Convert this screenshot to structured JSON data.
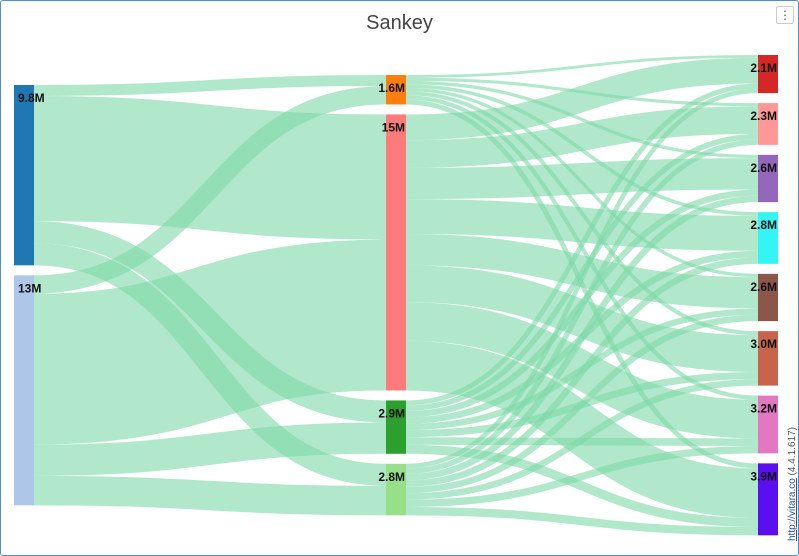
{
  "title": "Sankey",
  "menu_icon": "vertical-ellipsis-icon",
  "credit": {
    "link": "http://vitara.co",
    "version": "(4.4.1.617)"
  },
  "chart_data": {
    "type": "sankey",
    "title": "Sankey",
    "link_color": "#7dd8a8",
    "columns": [
      [
        {
          "id": "L1",
          "label": "9.8M",
          "color": "#1f77b4"
        },
        {
          "id": "L2",
          "label": "13M",
          "color": "#aec7e8"
        }
      ],
      [
        {
          "id": "M1",
          "label": "1.6M",
          "color": "#ff7f0e"
        },
        {
          "id": "M2",
          "label": "15M",
          "color": "#ff7b7b"
        },
        {
          "id": "M3",
          "label": "2.9M",
          "color": "#2ca02c"
        },
        {
          "id": "M4",
          "label": "2.8M",
          "color": "#98df8a"
        }
      ],
      [
        {
          "id": "R1",
          "label": "2.1M",
          "color": "#d62728"
        },
        {
          "id": "R2",
          "label": "2.3M",
          "color": "#ff9896"
        },
        {
          "id": "R3",
          "label": "2.6M",
          "color": "#9467bd"
        },
        {
          "id": "R4",
          "label": "2.8M",
          "color": "#33f5f5"
        },
        {
          "id": "R5",
          "label": "2.6M",
          "color": "#8c564b"
        },
        {
          "id": "R6",
          "label": "3.0M",
          "color": "#c8644c"
        },
        {
          "id": "R7",
          "label": "3.2M",
          "color": "#e377c2"
        },
        {
          "id": "R8",
          "label": "3.9M",
          "color": "#5b0ff0"
        }
      ]
    ],
    "links": [
      [
        "L1",
        "M1",
        0.6
      ],
      [
        "L1",
        "M2",
        6.8
      ],
      [
        "L1",
        "M3",
        1.2
      ],
      [
        "L1",
        "M4",
        1.2
      ],
      [
        "L2",
        "M1",
        1.0
      ],
      [
        "L2",
        "M2",
        8.2
      ],
      [
        "L2",
        "M3",
        1.7
      ],
      [
        "L2",
        "M4",
        1.6
      ],
      [
        "M1",
        "R1",
        0.15
      ],
      [
        "M1",
        "R2",
        0.17
      ],
      [
        "M1",
        "R3",
        0.18
      ],
      [
        "M1",
        "R4",
        0.2
      ],
      [
        "M1",
        "R5",
        0.18
      ],
      [
        "M1",
        "R6",
        0.22
      ],
      [
        "M1",
        "R7",
        0.23
      ],
      [
        "M1",
        "R8",
        0.27
      ],
      [
        "M2",
        "R1",
        1.4
      ],
      [
        "M2",
        "R2",
        1.5
      ],
      [
        "M2",
        "R3",
        1.7
      ],
      [
        "M2",
        "R4",
        1.9
      ],
      [
        "M2",
        "R5",
        1.7
      ],
      [
        "M2",
        "R6",
        2.0
      ],
      [
        "M2",
        "R7",
        2.1
      ],
      [
        "M2",
        "R8",
        2.7
      ],
      [
        "M3",
        "R1",
        0.27
      ],
      [
        "M3",
        "R2",
        0.3
      ],
      [
        "M3",
        "R3",
        0.34
      ],
      [
        "M3",
        "R4",
        0.36
      ],
      [
        "M3",
        "R5",
        0.34
      ],
      [
        "M3",
        "R6",
        0.39
      ],
      [
        "M3",
        "R7",
        0.41
      ],
      [
        "M3",
        "R8",
        0.49
      ],
      [
        "M4",
        "R1",
        0.25
      ],
      [
        "M4",
        "R2",
        0.3
      ],
      [
        "M4",
        "R3",
        0.35
      ],
      [
        "M4",
        "R4",
        0.35
      ],
      [
        "M4",
        "R5",
        0.35
      ],
      [
        "M4",
        "R6",
        0.35
      ],
      [
        "M4",
        "R7",
        0.4
      ],
      [
        "M4",
        "R8",
        0.45
      ]
    ]
  }
}
